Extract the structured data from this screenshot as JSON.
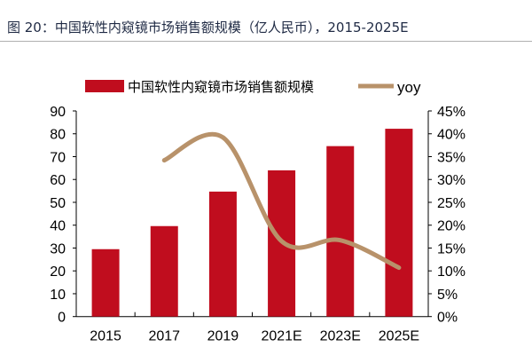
{
  "title": "图 20：中国软性内窥镜市场销售额规模（亿人民币），2015-2025E",
  "chart_data": {
    "type": "bar+line",
    "title": "图 20：中国软性内窥镜市场销售额规模（亿人民币），2015-2025E",
    "categories": [
      "2015",
      "2017",
      "2019",
      "2021E",
      "2023E",
      "2025E"
    ],
    "series": [
      {
        "name": "中国软性内窥镜市场销售额规模",
        "type": "bar",
        "axis": "left",
        "color": "#c00d1e",
        "values": [
          29.5,
          39.6,
          54.7,
          64,
          74.6,
          82.2
        ]
      },
      {
        "name": "yoy",
        "type": "line",
        "axis": "right",
        "color": "#b8926a",
        "values": [
          null,
          34.2,
          39.2,
          16.5,
          16.7,
          10.7
        ]
      }
    ],
    "y_left": {
      "min": 0,
      "max": 90,
      "step": 10,
      "ticks": [
        "0",
        "10",
        "20",
        "30",
        "40",
        "50",
        "60",
        "70",
        "80",
        "90"
      ]
    },
    "y_right": {
      "min": 0,
      "max": 45,
      "step": 5,
      "ticks": [
        "0%",
        "5%",
        "10%",
        "15%",
        "20%",
        "25%",
        "30%",
        "35%",
        "40%",
        "45%"
      ]
    },
    "legend_position": "top",
    "grid": false
  }
}
